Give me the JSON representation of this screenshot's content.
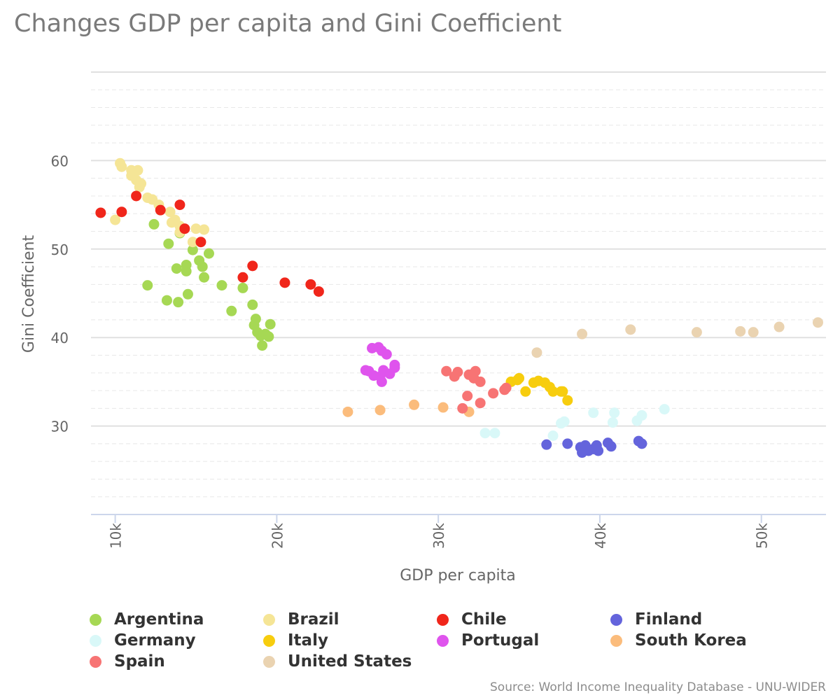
{
  "chart_data": {
    "type": "scatter",
    "title": "Changes GDP per capita and Gini Coefficient",
    "xlabel": "GDP per capita",
    "ylabel": "Gini Coefficient",
    "xlim": [
      8500,
      54000
    ],
    "ylim": [
      20,
      70
    ],
    "x_ticks": [
      10000,
      20000,
      30000,
      40000,
      50000
    ],
    "x_tick_labels": [
      "10k",
      "20k",
      "30k",
      "40k",
      "50k"
    ],
    "y_ticks": [
      30,
      40,
      50,
      60
    ],
    "y_tick_labels": [
      "30",
      "40",
      "50",
      "60"
    ],
    "grid": true,
    "legend_position": "bottom",
    "source": "Source: World Income Inequality Database - UNU-WIDER",
    "series": [
      {
        "name": "Argentina",
        "color": "#a6d854",
        "points": [
          [
            12400,
            52.8
          ],
          [
            13300,
            50.6
          ],
          [
            14000,
            51.8
          ],
          [
            14800,
            49.9
          ],
          [
            15200,
            48.7
          ],
          [
            15800,
            49.5
          ],
          [
            14400,
            48.2
          ],
          [
            13800,
            47.8
          ],
          [
            14400,
            47.5
          ],
          [
            15400,
            48.0
          ],
          [
            15500,
            46.8
          ],
          [
            12000,
            45.9
          ],
          [
            16600,
            45.9
          ],
          [
            17900,
            45.6
          ],
          [
            13200,
            44.2
          ],
          [
            13900,
            44.0
          ],
          [
            14500,
            44.9
          ],
          [
            17200,
            43.0
          ],
          [
            18500,
            43.7
          ],
          [
            18700,
            42.1
          ],
          [
            18600,
            41.4
          ],
          [
            19600,
            41.5
          ],
          [
            18800,
            40.6
          ],
          [
            19000,
            40.2
          ],
          [
            19300,
            40.4
          ],
          [
            19500,
            40.1
          ],
          [
            19100,
            39.1
          ]
        ]
      },
      {
        "name": "Brazil",
        "color": "#f5e596",
        "points": [
          [
            10300,
            59.7
          ],
          [
            10400,
            59.3
          ],
          [
            11000,
            58.9
          ],
          [
            11400,
            58.9
          ],
          [
            11000,
            58.3
          ],
          [
            11300,
            57.8
          ],
          [
            11600,
            57.4
          ],
          [
            11500,
            57.0
          ],
          [
            12000,
            55.8
          ],
          [
            12300,
            55.6
          ],
          [
            12700,
            55.0
          ],
          [
            13400,
            54.2
          ],
          [
            13700,
            53.3
          ],
          [
            13500,
            53.0
          ],
          [
            14000,
            52.6
          ],
          [
            15000,
            52.3
          ],
          [
            15500,
            52.2
          ],
          [
            14000,
            51.9
          ],
          [
            14800,
            50.8
          ],
          [
            10000,
            53.3
          ]
        ]
      },
      {
        "name": "Chile",
        "color": "#f0261b",
        "points": [
          [
            9100,
            54.1
          ],
          [
            10400,
            54.2
          ],
          [
            11300,
            56.0
          ],
          [
            12800,
            54.4
          ],
          [
            14000,
            55.0
          ],
          [
            14300,
            52.3
          ],
          [
            15300,
            50.8
          ],
          [
            17900,
            46.8
          ],
          [
            18500,
            48.1
          ],
          [
            20500,
            46.2
          ],
          [
            22100,
            46.0
          ],
          [
            22600,
            45.2
          ]
        ]
      },
      {
        "name": "Finland",
        "color": "#6464dc",
        "points": [
          [
            36700,
            27.9
          ],
          [
            38000,
            28.0
          ],
          [
            38800,
            27.6
          ],
          [
            39000,
            27.4
          ],
          [
            38900,
            27.0
          ],
          [
            39100,
            27.8
          ],
          [
            39300,
            27.2
          ],
          [
            39600,
            27.4
          ],
          [
            39800,
            27.8
          ],
          [
            39900,
            27.2
          ],
          [
            40500,
            28.1
          ],
          [
            40700,
            27.7
          ],
          [
            42400,
            28.3
          ],
          [
            42600,
            28.0
          ]
        ]
      },
      {
        "name": "Germany",
        "color": "#d9f8f8",
        "points": [
          [
            32900,
            29.2
          ],
          [
            33500,
            29.2
          ],
          [
            37100,
            28.9
          ],
          [
            37600,
            30.3
          ],
          [
            37800,
            30.5
          ],
          [
            39600,
            31.5
          ],
          [
            40800,
            30.4
          ],
          [
            40900,
            31.5
          ],
          [
            42300,
            30.6
          ],
          [
            42600,
            31.2
          ],
          [
            44000,
            31.9
          ]
        ]
      },
      {
        "name": "Italy",
        "color": "#f7cd0e",
        "points": [
          [
            34500,
            35.0
          ],
          [
            35000,
            35.4
          ],
          [
            34900,
            35.2
          ],
          [
            35400,
            33.9
          ],
          [
            35900,
            34.9
          ],
          [
            36200,
            35.1
          ],
          [
            36600,
            34.9
          ],
          [
            36900,
            34.4
          ],
          [
            37100,
            33.9
          ],
          [
            37600,
            33.9
          ],
          [
            37700,
            33.9
          ],
          [
            38000,
            32.9
          ]
        ]
      },
      {
        "name": "Portugal",
        "color": "#df54ed",
        "points": [
          [
            25900,
            38.8
          ],
          [
            26300,
            38.9
          ],
          [
            26500,
            38.5
          ],
          [
            26800,
            38.1
          ],
          [
            25500,
            36.3
          ],
          [
            25700,
            36.2
          ],
          [
            26000,
            35.7
          ],
          [
            26400,
            35.6
          ],
          [
            26500,
            35.0
          ],
          [
            26600,
            36.3
          ],
          [
            27000,
            35.9
          ],
          [
            27300,
            36.6
          ],
          [
            27300,
            36.9
          ]
        ]
      },
      {
        "name": "South Korea",
        "color": "#fbbc7c",
        "points": [
          [
            24400,
            31.6
          ],
          [
            26400,
            31.8
          ],
          [
            28500,
            32.4
          ],
          [
            30300,
            32.1
          ],
          [
            31900,
            31.6
          ]
        ]
      },
      {
        "name": "Spain",
        "color": "#f77474",
        "points": [
          [
            30500,
            36.2
          ],
          [
            31000,
            35.6
          ],
          [
            31200,
            36.1
          ],
          [
            31900,
            35.8
          ],
          [
            32200,
            35.4
          ],
          [
            32300,
            36.2
          ],
          [
            32600,
            35.0
          ],
          [
            31800,
            33.4
          ],
          [
            31500,
            32.0
          ],
          [
            32600,
            32.6
          ],
          [
            33400,
            33.7
          ],
          [
            34200,
            34.3
          ],
          [
            34100,
            34.1
          ]
        ]
      },
      {
        "name": "United States",
        "color": "#ead3b1",
        "points": [
          [
            36100,
            38.3
          ],
          [
            38900,
            40.4
          ],
          [
            41900,
            40.9
          ],
          [
            46000,
            40.6
          ],
          [
            48700,
            40.7
          ],
          [
            49500,
            40.6
          ],
          [
            51100,
            41.2
          ],
          [
            53500,
            41.7
          ]
        ]
      }
    ]
  }
}
